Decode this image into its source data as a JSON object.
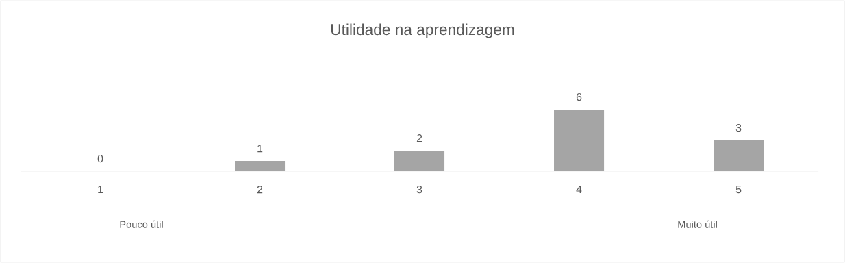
{
  "chart_data": {
    "type": "bar",
    "title": "Utilidade na aprendizagem",
    "categories": [
      "1",
      "2",
      "3",
      "4",
      "5"
    ],
    "values": [
      0,
      1,
      2,
      6,
      3
    ],
    "color": "#a5a5a5",
    "data_labels": true,
    "annotations": [
      "Pouco útil",
      "Muito útil"
    ]
  }
}
